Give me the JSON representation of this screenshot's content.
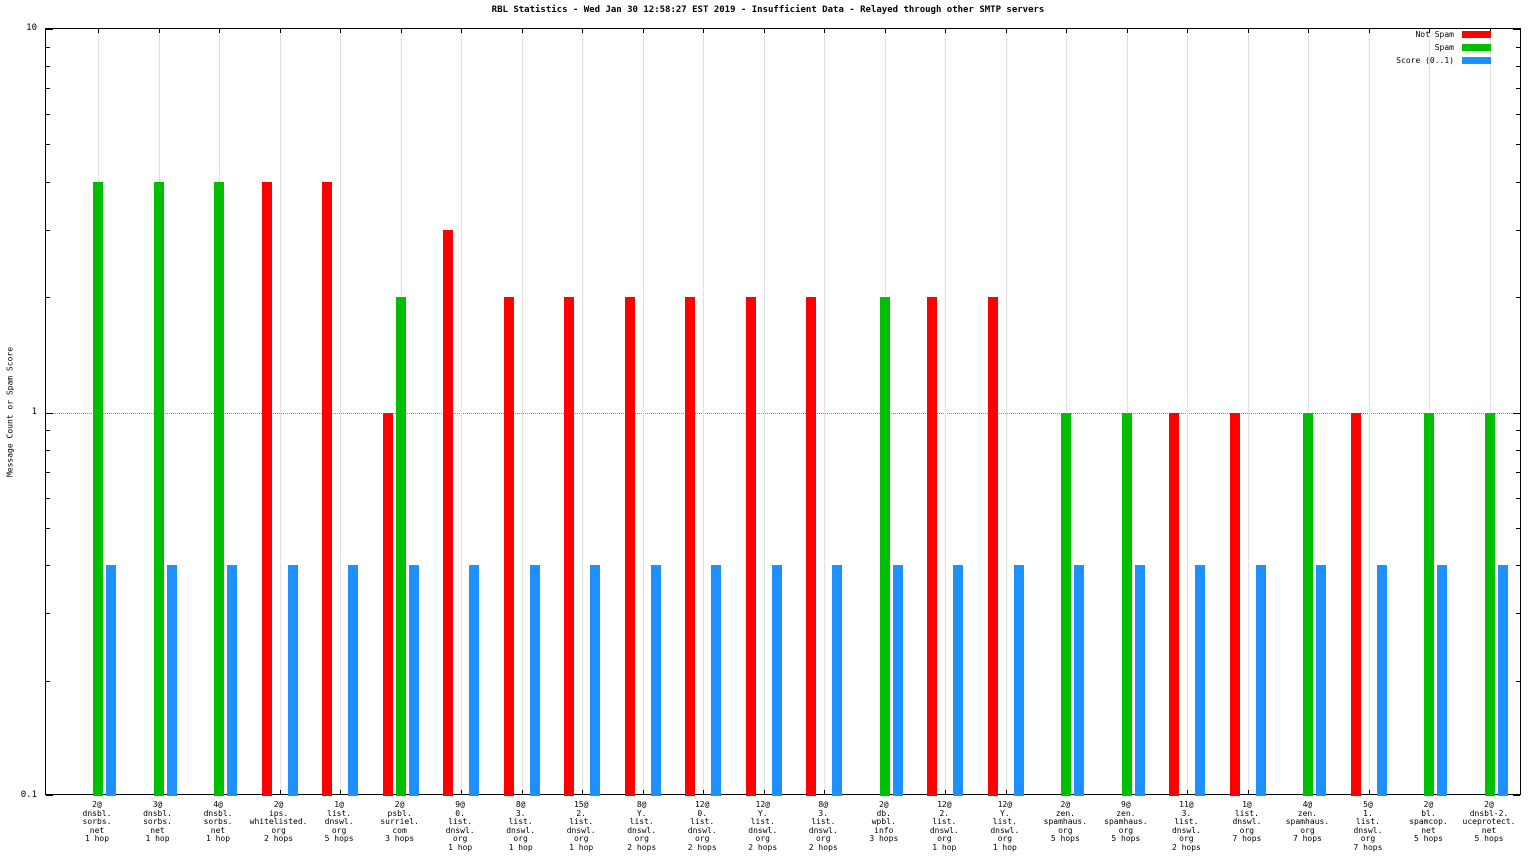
{
  "chart_data": {
    "type": "bar",
    "yscale": "log",
    "title": "RBL Statistics - Wed Jan 30 12:58:27 EST 2019 - Insufficient Data - Relayed through other SMTP servers",
    "ylabel": "Message Count or Spam Score",
    "ylim": [
      0.1,
      10
    ],
    "yticks": [
      10,
      1,
      0.1
    ],
    "grid": true,
    "legend_position": "top-right",
    "categories": [
      [
        "2@",
        "dnsbl.",
        "sorbs.",
        "net",
        "1 hop"
      ],
      [
        "3@",
        "dnsbl.",
        "sorbs.",
        "net",
        "1 hop"
      ],
      [
        "4@",
        "dnsbl.",
        "sorbs.",
        "net",
        "1 hop"
      ],
      [
        "2@",
        "ips.",
        "whitelisted.",
        "org",
        "2 hops"
      ],
      [
        "1@",
        "list.",
        "dnswl.",
        "org",
        "5 hops"
      ],
      [
        "2@",
        "psbl.",
        "surriel.",
        "com",
        "3 hops"
      ],
      [
        "9@",
        "0.",
        "list.",
        "dnswl.",
        "org",
        "1 hop"
      ],
      [
        "8@",
        "3.",
        "list.",
        "dnswl.",
        "org",
        "1 hop"
      ],
      [
        "15@",
        "2.",
        "list.",
        "dnswl.",
        "org",
        "1 hop"
      ],
      [
        "8@",
        "Y.",
        "list.",
        "dnswl.",
        "org",
        "2 hops"
      ],
      [
        "12@",
        "0.",
        "list.",
        "dnswl.",
        "org",
        "2 hops"
      ],
      [
        "12@",
        "Y.",
        "list.",
        "dnswl.",
        "org",
        "2 hops"
      ],
      [
        "8@",
        "3.",
        "list.",
        "dnswl.",
        "org",
        "2 hops"
      ],
      [
        "2@",
        "db.",
        "wpbl.",
        "info",
        "3 hops"
      ],
      [
        "12@",
        "2.",
        "list.",
        "dnswl.",
        "org",
        "1 hop"
      ],
      [
        "12@",
        "Y.",
        "list.",
        "dnswl.",
        "org",
        "1 hop"
      ],
      [
        "2@",
        "zen.",
        "spamhaus.",
        "org",
        "5 hops"
      ],
      [
        "9@",
        "zen.",
        "spamhaus.",
        "org",
        "5 hops"
      ],
      [
        "11@",
        "3.",
        "list.",
        "dnswl.",
        "org",
        "2 hops"
      ],
      [
        "1@",
        "list.",
        "dnswl.",
        "org",
        "7 hops"
      ],
      [
        "4@",
        "zen.",
        "spamhaus.",
        "org",
        "7 hops"
      ],
      [
        "5@",
        "1.",
        "list.",
        "dnswl.",
        "org",
        "7 hops"
      ],
      [
        "2@",
        "bl.",
        "spamcop.",
        "net",
        "5 hops"
      ],
      [
        "2@",
        "dnsbl-2.",
        "uceprotect.",
        "net",
        "5 hops"
      ]
    ],
    "series": [
      {
        "name": "Not Spam",
        "color": "#ff0000",
        "values": [
          0,
          0,
          0,
          4,
          4,
          1,
          3,
          2,
          2,
          2,
          2,
          2,
          2,
          0,
          2,
          2,
          0,
          0,
          1,
          1,
          0,
          1,
          0,
          0
        ]
      },
      {
        "name": "Spam",
        "color": "#00bf00",
        "values": [
          4,
          4,
          4,
          0,
          0,
          2,
          0,
          0,
          0,
          0,
          0,
          0,
          0,
          2,
          0,
          0,
          1,
          1,
          0,
          0,
          1,
          0,
          1,
          1
        ]
      },
      {
        "name": "Score (0..1)",
        "color": "#1e90ff",
        "values": [
          0.4,
          0.4,
          0.4,
          0.4,
          0.4,
          0.4,
          0.4,
          0.4,
          0.4,
          0.4,
          0.4,
          0.4,
          0.4,
          0.4,
          0.4,
          0.4,
          0.4,
          0.4,
          0.4,
          0.4,
          0.4,
          0.4,
          0.4,
          0.4
        ]
      }
    ]
  }
}
